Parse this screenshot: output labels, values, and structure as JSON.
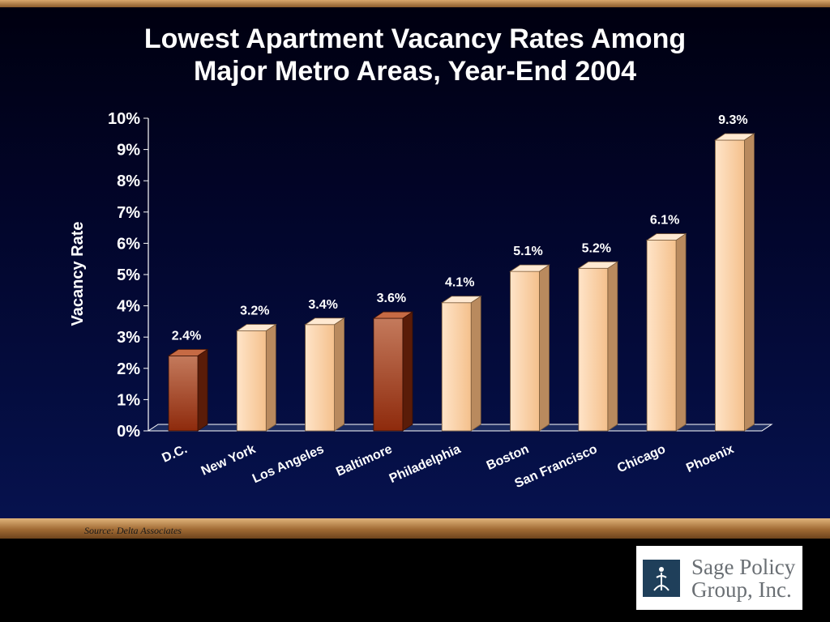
{
  "title": {
    "line1": "Lowest Apartment Vacancy Rates Among",
    "line2": "Major Metro Areas, Year-End 2004"
  },
  "source": "Source: Delta Associates",
  "logo": {
    "line1": "Sage Policy",
    "line2": "Group, Inc."
  },
  "colors": {
    "highlight_bar": "#a0401e",
    "default_bar": "#f6c99a",
    "axis": "#ffffff",
    "background": "#06124e"
  },
  "chart_data": {
    "type": "bar",
    "title": "Lowest Apartment Vacancy Rates Among Major Metro Areas, Year-End 2004",
    "xlabel": "",
    "ylabel": "Vacancy Rate",
    "ylim": [
      0,
      10
    ],
    "yticks": [
      "0%",
      "1%",
      "2%",
      "3%",
      "4%",
      "5%",
      "6%",
      "7%",
      "8%",
      "9%",
      "10%"
    ],
    "categories": [
      "D.C.",
      "New York",
      "Los Angeles",
      "Baltimore",
      "Philadelphia",
      "Boston",
      "San Francisco",
      "Chicago",
      "Phoenix"
    ],
    "values": [
      2.4,
      3.2,
      3.4,
      3.6,
      4.1,
      5.1,
      5.2,
      6.1,
      9.3
    ],
    "data_labels": [
      "2.4%",
      "3.2%",
      "3.4%",
      "3.6%",
      "4.1%",
      "5.1%",
      "5.2%",
      "6.1%",
      "9.3%"
    ],
    "highlighted": [
      "D.C.",
      "Baltimore"
    ],
    "grid": false,
    "legend": "none",
    "style": "3d"
  }
}
